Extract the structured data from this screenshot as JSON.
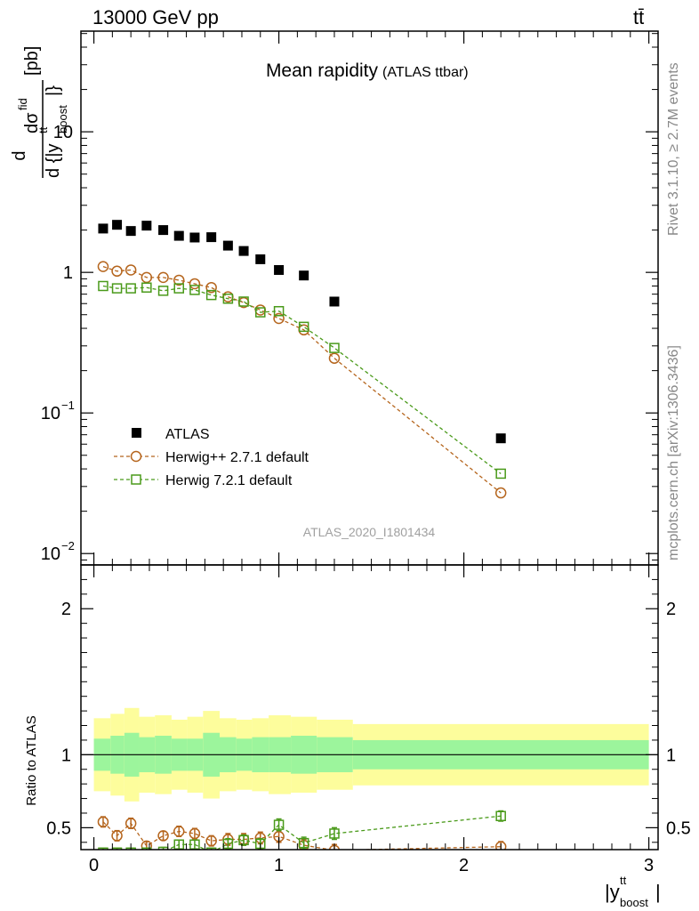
{
  "header": {
    "energy_label": "13000 GeV pp",
    "process_label": "tt̄"
  },
  "side_labels": {
    "rivet": "Rivet 3.1.10, ≥ 2.7M events",
    "mcplots": "mcplots.cern.ch [arXiv:1306.3436]"
  },
  "watermark": "ATLAS_2020_I1801434",
  "chart_data": [
    {
      "type": "scatter",
      "title": "Mean rapidity",
      "subtitle": "(ATLAS ttbar)",
      "ylabel": "d σ^fid / d {|y^tt_boost|} [pb]",
      "xlabel": "|y^tt_boost|",
      "yscale": "log",
      "xlim": [
        -0.07,
        3.05
      ],
      "ylim": [
        0.0083,
        52
      ],
      "x_ticks": [
        "0",
        "1",
        "2",
        "3"
      ],
      "y_ticks": [
        "10^-2",
        "10^-1",
        "1",
        "10"
      ],
      "legend_position": "lower-left",
      "x": [
        0.05,
        0.125,
        0.2,
        0.285,
        0.375,
        0.46,
        0.545,
        0.635,
        0.725,
        0.81,
        0.9,
        1.0,
        1.135,
        1.3,
        2.2
      ],
      "series": [
        {
          "name": "ATLAS",
          "marker": "filled-square",
          "color": "#000000",
          "values": [
            2.05,
            2.18,
            1.97,
            2.15,
            2.0,
            1.82,
            1.77,
            1.78,
            1.55,
            1.42,
            1.24,
            1.04,
            0.95,
            0.62,
            0.066
          ]
        },
        {
          "name": "Herwig++ 2.7.1 default",
          "marker": "open-circle",
          "color": "#b5651d",
          "values": [
            1.1,
            1.02,
            1.04,
            0.92,
            0.92,
            0.88,
            0.83,
            0.78,
            0.67,
            0.61,
            0.54,
            0.47,
            0.39,
            0.245,
            0.027
          ]
        },
        {
          "name": "Herwig 7.2.1 default",
          "marker": "open-square",
          "color": "#4a9a1a",
          "values": [
            0.8,
            0.77,
            0.77,
            0.78,
            0.74,
            0.77,
            0.75,
            0.69,
            0.65,
            0.62,
            0.52,
            0.53,
            0.41,
            0.29,
            0.037
          ]
        }
      ]
    },
    {
      "type": "scatter",
      "ylabel": "Ratio to ATLAS",
      "xlabel": "|y^tt_boost|",
      "xlim": [
        -0.07,
        3.05
      ],
      "ylim": [
        0.35,
        2.3
      ],
      "x_ticks": [
        "0",
        "1",
        "2",
        "3"
      ],
      "y_ticks": [
        "0.5",
        "1",
        "2"
      ],
      "reference_line": 1,
      "uncertainty_bands": {
        "edges": [
          0.0,
          0.09,
          0.165,
          0.245,
          0.33,
          0.42,
          0.505,
          0.59,
          0.68,
          0.77,
          0.855,
          0.945,
          1.065,
          1.205,
          1.4,
          3.0
        ],
        "inner_half_width": [
          0.11,
          0.13,
          0.15,
          0.12,
          0.13,
          0.11,
          0.11,
          0.15,
          0.12,
          0.11,
          0.12,
          0.12,
          0.13,
          0.12,
          0.1
        ],
        "outer_half_width": [
          0.25,
          0.28,
          0.32,
          0.26,
          0.27,
          0.24,
          0.26,
          0.3,
          0.25,
          0.24,
          0.25,
          0.27,
          0.26,
          0.24,
          0.21
        ],
        "inner_color": "#9cf59c",
        "outer_color": "#fdfd9c"
      },
      "x": [
        0.05,
        0.125,
        0.2,
        0.285,
        0.375,
        0.46,
        0.545,
        0.635,
        0.725,
        0.81,
        0.9,
        1.0,
        1.135,
        1.3,
        2.2
      ],
      "series": [
        {
          "name": "Herwig++ 2.7.1 default",
          "marker": "open-circle",
          "color": "#b5651d",
          "values": [
            0.54,
            0.445,
            0.53,
            0.375,
            0.445,
            0.475,
            0.46,
            0.41,
            0.42,
            0.42,
            0.43,
            0.44,
            0.38,
            0.345,
            0.37
          ],
          "errors": [
            0.035,
            0.035,
            0.035,
            0.03,
            0.03,
            0.035,
            0.035,
            0.035,
            0.04,
            0.04,
            0.04,
            0.04,
            0.04,
            0.04,
            0.035
          ]
        },
        {
          "name": "Herwig 7.2.1 default",
          "marker": "open-square",
          "color": "#4a9a1a",
          "values": [
            0.33,
            0.33,
            0.33,
            0.33,
            0.335,
            0.385,
            0.385,
            0.33,
            0.39,
            0.415,
            0.39,
            0.52,
            0.395,
            0.46,
            0.58
          ],
          "errors": [
            0.03,
            0.03,
            0.03,
            0.03,
            0.03,
            0.03,
            0.03,
            0.03,
            0.035,
            0.035,
            0.035,
            0.04,
            0.04,
            0.04,
            0.035
          ]
        }
      ]
    }
  ]
}
